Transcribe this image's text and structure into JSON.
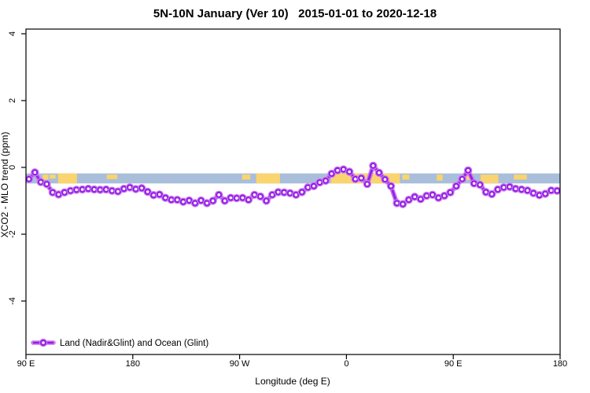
{
  "title": "5N-10N January (Ver 10)   2015-01-01 to 2020-12-18",
  "axes": {
    "x": {
      "label": "Longitude (deg E)",
      "ticks": [
        {
          "value": 90,
          "label": "90 E"
        },
        {
          "value": 180,
          "label": "180"
        },
        {
          "value": 270,
          "label": "90 W"
        },
        {
          "value": 360,
          "label": "0"
        },
        {
          "value": 450,
          "label": "90 E"
        },
        {
          "value": 540,
          "label": "180"
        }
      ]
    },
    "y": {
      "label": "XCO2 - MLO trend (ppm)",
      "ticks": [
        {
          "value": 4,
          "label": "4"
        },
        {
          "value": 2,
          "label": "2"
        },
        {
          "value": 0,
          "label": "0"
        },
        {
          "value": -2,
          "label": "-2"
        },
        {
          "value": -4,
          "label": "-4"
        }
      ]
    }
  },
  "legend": {
    "label": "Land (Nadir&Glint) and Ocean (Glint)"
  },
  "colors": {
    "line_core": "#9420e6",
    "line_halo": "#cb7bee",
    "marker_fill": "#ffffff",
    "ocean_band": "#a8bedb",
    "land_band": "#fad46e",
    "axis": "#000000"
  },
  "chart_data": {
    "type": "line",
    "title": "5N-10N January (Ver 10)   2015-01-01 to 2020-12-18",
    "xlabel": "Longitude (deg E)",
    "ylabel": "XCO2 - MLO trend (ppm)",
    "xlim": [
      90,
      540
    ],
    "ylim": [
      -5.6,
      4.14
    ],
    "grid": false,
    "legend_position": "bottom-left-inside",
    "series": [
      {
        "name": "Land (Nadir&Glint) and Ocean (Glint)",
        "x": [
          92.5,
          97.5,
          102.5,
          107.5,
          112.5,
          117.5,
          122.5,
          127.5,
          132.5,
          137.5,
          142.5,
          147.5,
          152.5,
          157.5,
          162.5,
          167.5,
          172.5,
          177.5,
          182.5,
          187.5,
          192.5,
          197.5,
          202.5,
          207.5,
          212.5,
          217.5,
          222.5,
          227.5,
          232.5,
          237.5,
          242.5,
          247.5,
          252.5,
          257.5,
          262.5,
          267.5,
          272.5,
          277.5,
          282.5,
          287.5,
          292.5,
          297.5,
          302.5,
          307.5,
          312.5,
          317.5,
          322.5,
          327.5,
          332.5,
          337.5,
          342.5,
          347.5,
          352.5,
          357.5,
          362.5,
          367.5,
          372.5,
          377.5,
          382.5,
          387.5,
          392.5,
          397.5,
          402.5,
          407.5,
          412.5,
          417.5,
          422.5,
          427.5,
          432.5,
          437.5,
          442.5,
          447.5,
          452.5,
          457.5,
          462.5,
          467.5,
          472.5,
          477.5,
          482.5,
          487.5,
          492.5,
          497.5,
          502.5,
          507.5,
          512.5,
          517.5,
          522.5,
          527.5,
          532.5,
          537.5
        ],
        "y": [
          -0.35,
          -0.15,
          -0.44,
          -0.5,
          -0.75,
          -0.81,
          -0.75,
          -0.7,
          -0.67,
          -0.66,
          -0.64,
          -0.66,
          -0.67,
          -0.66,
          -0.7,
          -0.72,
          -0.64,
          -0.6,
          -0.65,
          -0.62,
          -0.73,
          -0.83,
          -0.81,
          -0.91,
          -0.97,
          -0.97,
          -1.03,
          -0.99,
          -1.07,
          -0.99,
          -1.07,
          -1.0,
          -0.82,
          -1.0,
          -0.91,
          -0.92,
          -0.91,
          -0.97,
          -0.82,
          -0.87,
          -1.0,
          -0.82,
          -0.74,
          -0.75,
          -0.77,
          -0.82,
          -0.74,
          -0.6,
          -0.56,
          -0.45,
          -0.4,
          -0.19,
          -0.09,
          -0.06,
          -0.13,
          -0.35,
          -0.32,
          -0.5,
          0.05,
          -0.16,
          -0.36,
          -0.56,
          -1.07,
          -1.1,
          -0.97,
          -0.88,
          -0.95,
          -0.85,
          -0.82,
          -0.91,
          -0.85,
          -0.75,
          -0.56,
          -0.35,
          -0.09,
          -0.48,
          -0.52,
          -0.74,
          -0.8,
          -0.66,
          -0.6,
          -0.58,
          -0.64,
          -0.66,
          -0.69,
          -0.77,
          -0.83,
          -0.79,
          -0.69,
          -0.7
        ]
      }
    ],
    "band": {
      "description": "ocean/land strip for latitude zone 5N-10N",
      "y_top": -0.18,
      "y_bottom": -0.48,
      "land_segments_lon": [
        [
          104,
          109,
          0.5
        ],
        [
          110,
          115,
          0.4
        ],
        [
          117,
          133,
          1
        ],
        [
          158,
          167,
          0.45
        ],
        [
          272,
          279,
          0.5
        ],
        [
          284,
          304,
          1
        ],
        [
          347,
          405,
          1
        ],
        [
          407,
          413,
          0.5
        ],
        [
          436,
          441,
          0.6
        ],
        [
          460,
          467,
          0.55
        ],
        [
          473,
          488,
          0.85
        ],
        [
          501,
          512,
          0.5
        ]
      ]
    }
  }
}
